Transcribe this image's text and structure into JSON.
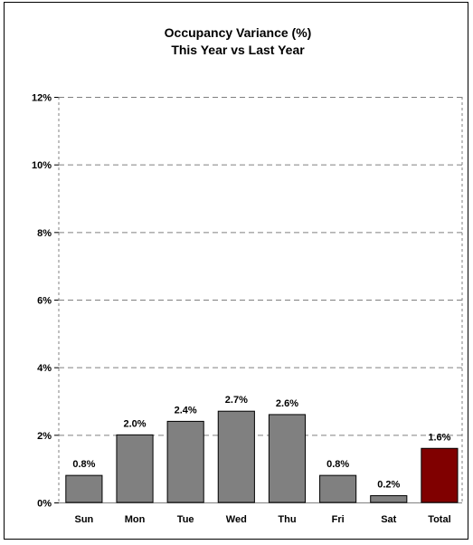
{
  "chart_data": {
    "type": "bar",
    "title": "Occupancy Variance (%)",
    "subtitle": "This Year vs Last Year",
    "categories": [
      "Sun",
      "Mon",
      "Tue",
      "Wed",
      "Thu",
      "Fri",
      "Sat",
      "Total"
    ],
    "values": [
      0.8,
      2.0,
      2.4,
      2.7,
      2.6,
      0.8,
      0.2,
      1.6
    ],
    "value_labels": [
      "0.8%",
      "2.0%",
      "2.4%",
      "2.7%",
      "2.6%",
      "0.8%",
      "0.2%",
      "1.6%"
    ],
    "ylim": [
      0,
      12
    ],
    "yticks": [
      0,
      2,
      4,
      6,
      8,
      10,
      12
    ],
    "ytick_labels": [
      "0%",
      "2%",
      "4%",
      "6%",
      "8%",
      "10%",
      "12%"
    ],
    "xlabel": "",
    "ylabel": "",
    "grid": true,
    "colors": {
      "bar": "#808080",
      "total_bar": "#800000",
      "grid": "#808080"
    }
  }
}
